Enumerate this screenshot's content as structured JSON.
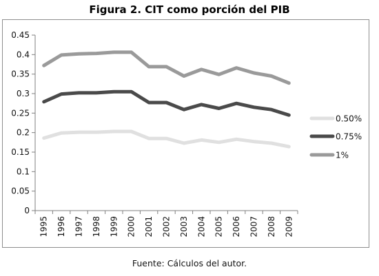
{
  "title": "Figura 2. CIT como porción del PIB",
  "source": "Fuente: Cálculos del autor.",
  "chart_data": {
    "type": "line",
    "title": "",
    "xlabel": "",
    "ylabel": "",
    "x": [
      "1995",
      "1996",
      "1997",
      "1998",
      "1999",
      "2000",
      "2001",
      "2002",
      "2003",
      "2004",
      "2005",
      "2006",
      "2007",
      "2008",
      "2009"
    ],
    "yticks": [
      "0",
      "0.05",
      "0.1",
      "0.15",
      "0.2",
      "0.25",
      "0.3",
      "0.35",
      "0.4",
      "0.45"
    ],
    "ylim": [
      0,
      0.45
    ],
    "grid": false,
    "legend": "right",
    "series": [
      {
        "name": "0.50%",
        "color": "#e0e0e0",
        "values": [
          0.186,
          0.199,
          0.201,
          0.201,
          0.203,
          0.203,
          0.185,
          0.185,
          0.173,
          0.181,
          0.175,
          0.183,
          0.177,
          0.173,
          0.164
        ]
      },
      {
        "name": "0.75%",
        "color": "#4a4a4a",
        "values": [
          0.279,
          0.299,
          0.302,
          0.302,
          0.305,
          0.305,
          0.277,
          0.277,
          0.259,
          0.272,
          0.262,
          0.275,
          0.265,
          0.259,
          0.245
        ]
      },
      {
        "name": "1%",
        "color": "#9a9a9a",
        "values": [
          0.372,
          0.399,
          0.402,
          0.403,
          0.406,
          0.406,
          0.369,
          0.369,
          0.345,
          0.362,
          0.349,
          0.366,
          0.353,
          0.345,
          0.327
        ]
      }
    ]
  }
}
